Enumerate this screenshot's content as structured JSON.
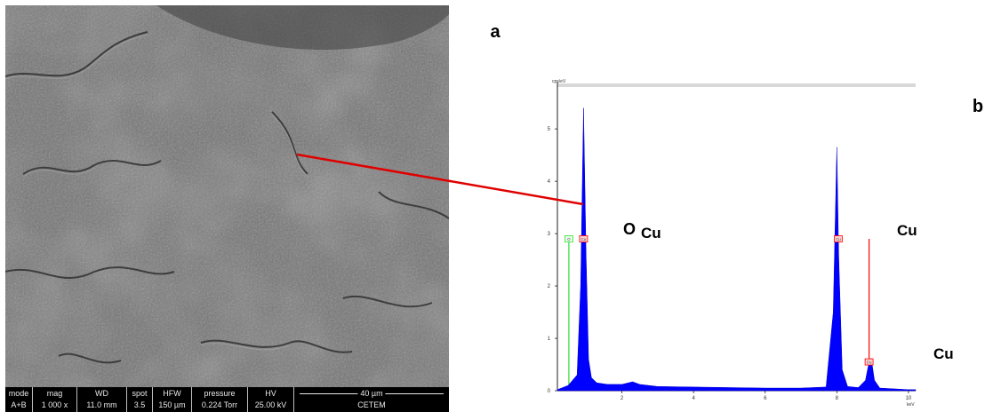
{
  "panel_labels": {
    "a": "a",
    "b": "b"
  },
  "sem": {
    "databar": {
      "headers": [
        "mode",
        "mag",
        "WD",
        "spot",
        "HFW",
        "pressure",
        "HV"
      ],
      "values": [
        "A+B",
        "1 000 x",
        "11.0 mm",
        "3.5",
        "150 µm",
        "0.224 Torr",
        "25.00 kV"
      ],
      "scale_bar": "40 µm",
      "footer": "CETEM"
    }
  },
  "spectrum": {
    "y_unit": "cps/eV",
    "x_unit": "keV",
    "y_ticks": [
      "5",
      "4",
      "3",
      "2",
      "1",
      "0"
    ],
    "x_ticks": [
      "2",
      "4",
      "6",
      "8",
      "10"
    ],
    "marker_tags": [
      "O",
      "Cu",
      "Cu",
      "Cu"
    ],
    "element_labels": {
      "o": "O",
      "cu_l": "Cu",
      "cu_ka": "Cu",
      "cu_kb": "Cu"
    },
    "colors": {
      "spectrum_fill": "#0000ff",
      "cu_marker": "#ff0000",
      "o_marker": "#33dd33",
      "pointer": "#e00000"
    }
  },
  "chart_data": {
    "type": "area",
    "title": "",
    "xlabel": "keV",
    "ylabel": "cps/eV",
    "xlim": [
      0.2,
      10.2
    ],
    "ylim": [
      0,
      5.8
    ],
    "x": [
      0.2,
      0.5,
      0.75,
      0.85,
      0.93,
      1.0,
      1.07,
      1.15,
      1.3,
      1.6,
      2.0,
      2.3,
      2.5,
      3.0,
      4.0,
      5.0,
      6.0,
      7.0,
      7.7,
      7.9,
      8.0,
      8.05,
      8.15,
      8.3,
      8.6,
      8.8,
      8.9,
      8.96,
      9.05,
      9.2,
      10.0,
      10.2
    ],
    "series": [
      {
        "values": [
          0.02,
          0.1,
          0.3,
          2.0,
          5.4,
          2.6,
          0.6,
          0.25,
          0.15,
          0.12,
          0.12,
          0.17,
          0.12,
          0.08,
          0.07,
          0.06,
          0.05,
          0.05,
          0.07,
          1.5,
          4.65,
          2.6,
          0.4,
          0.08,
          0.06,
          0.2,
          0.55,
          0.62,
          0.2,
          0.05,
          0.02,
          0.02
        ]
      }
    ],
    "markers": [
      {
        "label": "O",
        "x": 0.52,
        "color": "#33dd33"
      },
      {
        "label": "Cu",
        "x": 0.93,
        "color": "#ff0000"
      },
      {
        "label": "Cu",
        "x": 8.04,
        "color": "#ff0000"
      },
      {
        "label": "Cu",
        "x": 8.9,
        "color": "#ff0000"
      }
    ]
  }
}
